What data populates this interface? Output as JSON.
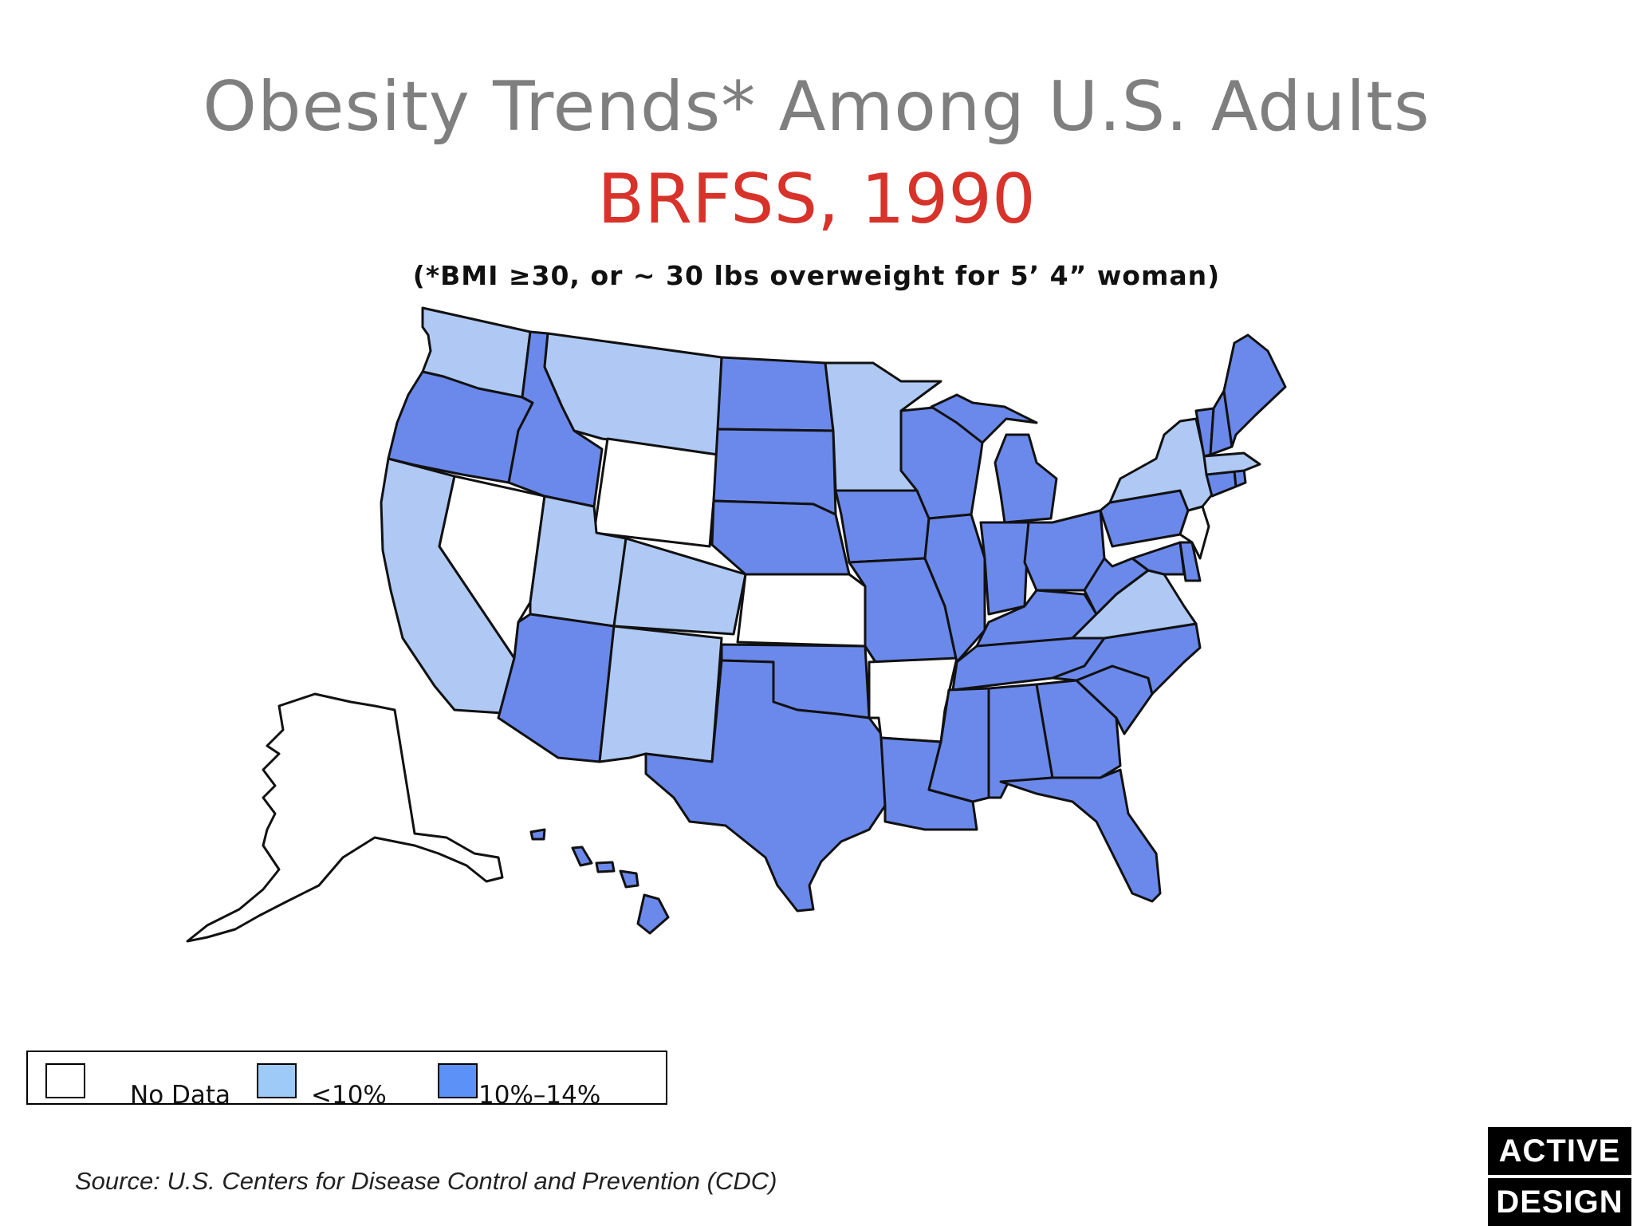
{
  "header": {
    "title": "Obesity Trends* Among U.S. Adults",
    "subtitle": "BRFSS, 1990",
    "note": "(*BMI ≥30, or ~ 30 lbs overweight for 5’ 4” woman)"
  },
  "legend": {
    "items": [
      {
        "label": "No Data",
        "color": "#ffffff"
      },
      {
        "label": "<10%",
        "color": "#9ecaf8"
      },
      {
        "label": "10%–14%",
        "color": "#5c92f7"
      }
    ]
  },
  "map_colors": {
    "no_data": "#ffffff",
    "under_10": "#afc9f4",
    "ten_to_14": "#6b89ea",
    "border": "#111111"
  },
  "states": {
    "WA": "under_10",
    "OR": "ten_to_14",
    "CA": "under_10",
    "NV": "no_data",
    "ID": "ten_to_14",
    "MT": "under_10",
    "WY": "no_data",
    "UT": "under_10",
    "CO": "under_10",
    "AZ": "ten_to_14",
    "NM": "under_10",
    "ND": "ten_to_14",
    "SD": "ten_to_14",
    "NE": "ten_to_14",
    "KS": "no_data",
    "OK": "ten_to_14",
    "TX": "ten_to_14",
    "MN": "under_10",
    "IA": "ten_to_14",
    "MO": "ten_to_14",
    "AR": "no_data",
    "LA": "ten_to_14",
    "WI": "ten_to_14",
    "IL": "ten_to_14",
    "MI": "ten_to_14",
    "IN": "ten_to_14",
    "OH": "ten_to_14",
    "KY": "ten_to_14",
    "TN": "ten_to_14",
    "MS": "ten_to_14",
    "AL": "ten_to_14",
    "GA": "ten_to_14",
    "FL": "ten_to_14",
    "SC": "ten_to_14",
    "NC": "ten_to_14",
    "VA": "under_10",
    "WV": "ten_to_14",
    "PA": "ten_to_14",
    "NY": "under_10",
    "NJ": "no_data",
    "DE": "ten_to_14",
    "MD": "ten_to_14",
    "CT": "ten_to_14",
    "RI": "ten_to_14",
    "MA": "under_10",
    "VT": "ten_to_14",
    "NH": "ten_to_14",
    "ME": "ten_to_14",
    "AK": "no_data",
    "HI": "ten_to_14"
  },
  "footer": {
    "source": "Source: U.S. Centers for Disease Control and Prevention (CDC)",
    "brand_line1": "ACTIVE",
    "brand_line2": "DESIGN"
  }
}
